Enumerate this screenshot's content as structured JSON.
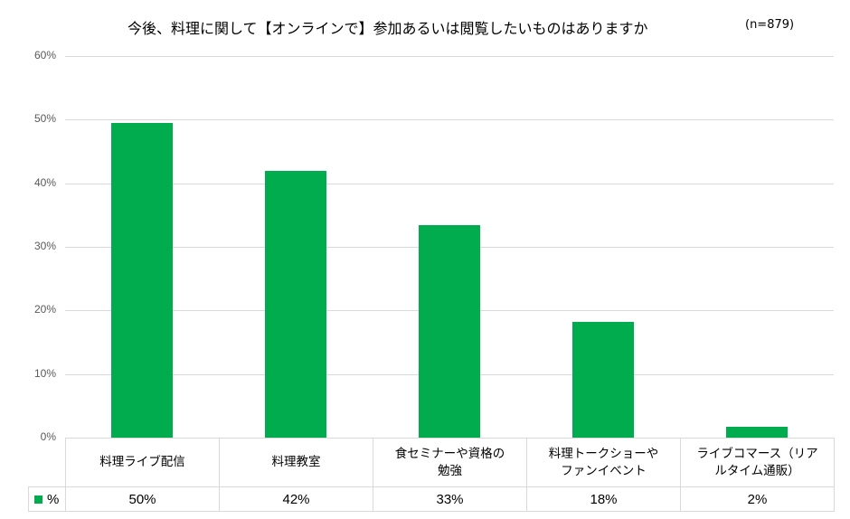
{
  "chart_data": {
    "type": "bar",
    "title": "今後、料理に関して【オンラインで】参加あるいは閲覧したいものはありますか",
    "subtitle": "(n=879)",
    "categories": [
      "料理ライブ配信",
      "料理教室",
      "食セミナーや資格の勉強",
      "料理トークショーやファンイベント",
      "ライブコマース（リアルタイム通販）"
    ],
    "category_lines": [
      [
        "料理ライブ配信"
      ],
      [
        "料理教室"
      ],
      [
        "食セミナーや資格の",
        "勉強"
      ],
      [
        "料理トークショーや",
        "ファンイベント"
      ],
      [
        "ライブコマース（リア",
        "ルタイム通販）"
      ]
    ],
    "series": [
      {
        "name": "%",
        "values": [
          49.5,
          42.0,
          33.4,
          18.2,
          1.7
        ],
        "labels": [
          "50%",
          "42%",
          "33%",
          "18%",
          "2%"
        ],
        "color": "#00ac4e"
      }
    ],
    "xlabel": "",
    "ylabel": "",
    "ylim": [
      0,
      60
    ],
    "yticks": [
      "0%",
      "10%",
      "20%",
      "30%",
      "40%",
      "50%",
      "60%"
    ],
    "grid": true,
    "legend_position": "data-table"
  }
}
